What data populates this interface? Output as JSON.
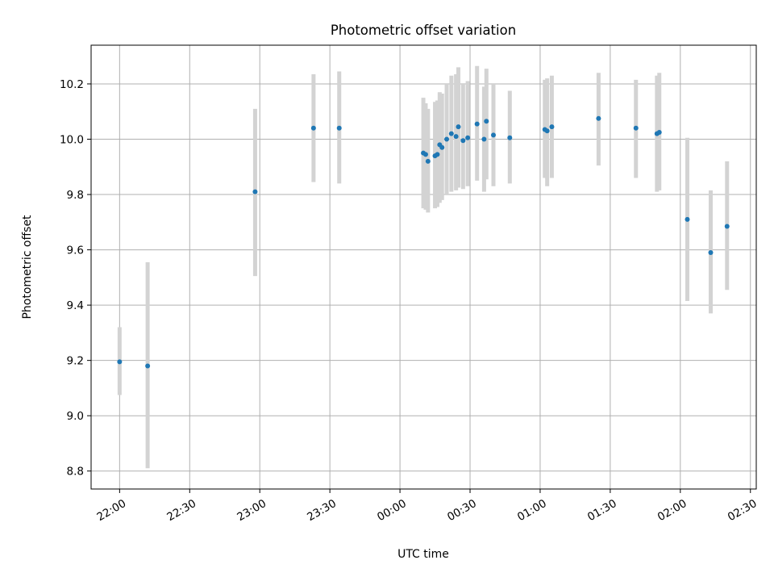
{
  "chart_data": {
    "type": "scatter",
    "title": "Photometric offset variation",
    "xlabel": "UTC time",
    "ylabel": "Photometric offset",
    "x_ticks": [
      "22:00",
      "22:30",
      "23:00",
      "23:30",
      "00:00",
      "00:30",
      "01:00",
      "01:30",
      "02:00",
      "02:30"
    ],
    "y_ticks": [
      "8.8",
      "9.0",
      "9.2",
      "9.4",
      "9.6",
      "9.8",
      "10.0",
      "10.2"
    ],
    "x_range_minutes": [
      -12.2,
      272.5
    ],
    "y_range": [
      8.735,
      10.34
    ],
    "grid": true,
    "colors": {
      "point": "#1f77b4",
      "errorbar": "#d3d3d3",
      "grid": "#b0b0b0",
      "axes": "#000000"
    },
    "points": [
      {
        "t": "22:00",
        "y": 9.195,
        "lo": 9.075,
        "hi": 9.32
      },
      {
        "t": "22:12",
        "y": 9.18,
        "lo": 8.81,
        "hi": 9.555
      },
      {
        "t": "22:58",
        "y": 9.81,
        "lo": 9.505,
        "hi": 10.11
      },
      {
        "t": "23:23",
        "y": 10.04,
        "lo": 9.845,
        "hi": 10.235
      },
      {
        "t": "23:34",
        "y": 10.04,
        "lo": 9.84,
        "hi": 10.245
      },
      {
        "t": "00:10",
        "y": 9.95,
        "lo": 9.75,
        "hi": 10.15
      },
      {
        "t": "00:11",
        "y": 9.945,
        "lo": 9.745,
        "hi": 10.13
      },
      {
        "t": "00:12",
        "y": 9.92,
        "lo": 9.735,
        "hi": 10.11
      },
      {
        "t": "00:15",
        "y": 9.94,
        "lo": 9.75,
        "hi": 10.135
      },
      {
        "t": "00:16",
        "y": 9.945,
        "lo": 9.755,
        "hi": 10.14
      },
      {
        "t": "00:17",
        "y": 9.98,
        "lo": 9.77,
        "hi": 10.17
      },
      {
        "t": "00:18",
        "y": 9.97,
        "lo": 9.78,
        "hi": 10.165
      },
      {
        "t": "00:20",
        "y": 10.0,
        "lo": 9.8,
        "hi": 10.2
      },
      {
        "t": "00:22",
        "y": 10.02,
        "lo": 9.81,
        "hi": 10.23
      },
      {
        "t": "00:24",
        "y": 10.01,
        "lo": 9.815,
        "hi": 10.235
      },
      {
        "t": "00:25",
        "y": 10.045,
        "lo": 9.825,
        "hi": 10.26
      },
      {
        "t": "00:27",
        "y": 9.995,
        "lo": 9.82,
        "hi": 10.2
      },
      {
        "t": "00:29",
        "y": 10.005,
        "lo": 9.83,
        "hi": 10.21
      },
      {
        "t": "00:33",
        "y": 10.055,
        "lo": 9.85,
        "hi": 10.265
      },
      {
        "t": "00:36",
        "y": 10.0,
        "lo": 9.81,
        "hi": 10.19
      },
      {
        "t": "00:37",
        "y": 10.065,
        "lo": 9.855,
        "hi": 10.255
      },
      {
        "t": "00:40",
        "y": 10.015,
        "lo": 9.83,
        "hi": 10.2
      },
      {
        "t": "00:47",
        "y": 10.005,
        "lo": 9.84,
        "hi": 10.175
      },
      {
        "t": "01:02",
        "y": 10.035,
        "lo": 9.86,
        "hi": 10.215
      },
      {
        "t": "01:03",
        "y": 10.03,
        "lo": 9.83,
        "hi": 10.22
      },
      {
        "t": "01:05",
        "y": 10.045,
        "lo": 9.86,
        "hi": 10.23
      },
      {
        "t": "01:25",
        "y": 10.075,
        "lo": 9.905,
        "hi": 10.24
      },
      {
        "t": "01:41",
        "y": 10.04,
        "lo": 9.86,
        "hi": 10.215
      },
      {
        "t": "01:50",
        "y": 10.02,
        "lo": 9.81,
        "hi": 10.23
      },
      {
        "t": "01:51",
        "y": 10.025,
        "lo": 9.815,
        "hi": 10.24
      },
      {
        "t": "02:03",
        "y": 9.71,
        "lo": 9.415,
        "hi": 10.005
      },
      {
        "t": "02:13",
        "y": 9.59,
        "lo": 9.37,
        "hi": 9.815
      },
      {
        "t": "02:20",
        "y": 9.685,
        "lo": 9.455,
        "hi": 9.92
      }
    ]
  }
}
